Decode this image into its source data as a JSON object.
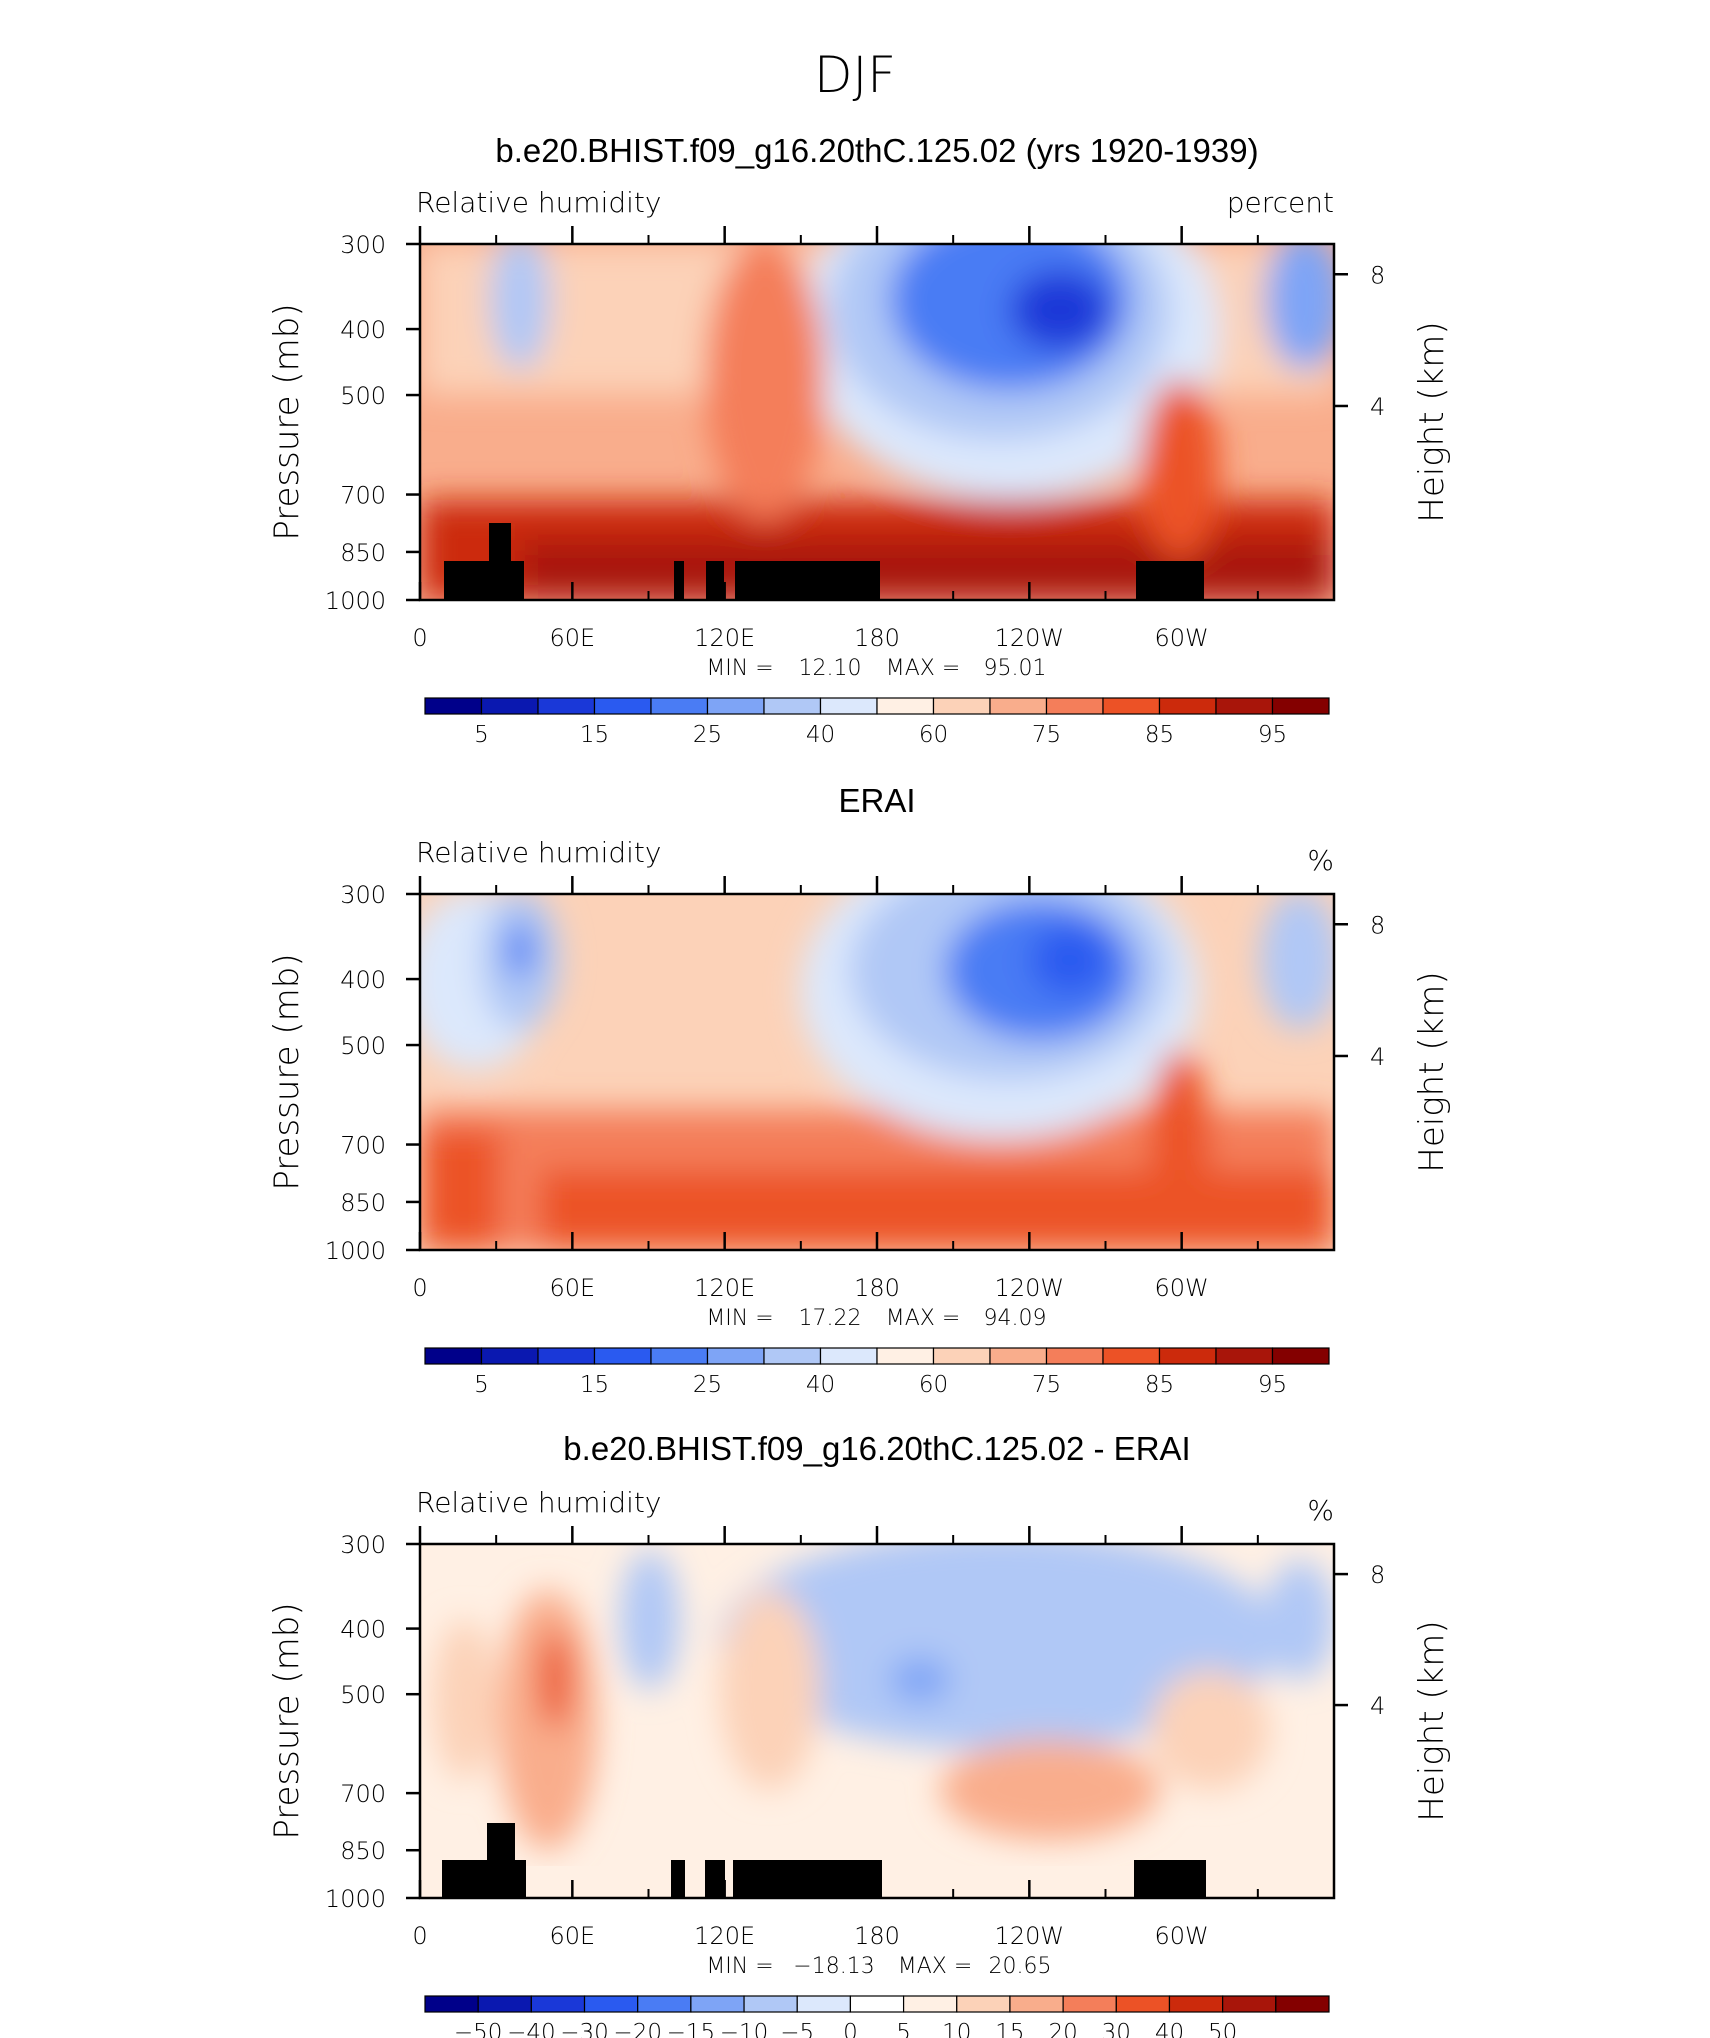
{
  "figure": {
    "title": "DJF"
  },
  "axes": {
    "x_ticks": [
      "0",
      "60E",
      "120E",
      "180",
      "120W",
      "60W"
    ],
    "y_label": "Pressure (mb)",
    "y_ticks": [
      "300",
      "400",
      "500",
      "700",
      "850",
      "1000"
    ],
    "y2_label": "Height (km)",
    "y2_ticks": [
      "8",
      "4"
    ],
    "min_label": "MIN =",
    "max_label": "MAX ="
  },
  "colors": {
    "rh_levels": [
      "#00008a",
      "#0a18b0",
      "#1a38d8",
      "#2a5af0",
      "#4a7cf4",
      "#7ea4f6",
      "#b0c8f6",
      "#dce8fc",
      "#fff0e4",
      "#fcd2b8",
      "#f9ad8c",
      "#f47e5a",
      "#ec5226",
      "#cc2a0c",
      "#a8150a",
      "#840000"
    ],
    "diff_levels": [
      "#00008a",
      "#0a18b0",
      "#1a38d8",
      "#2a5af0",
      "#4a7cf4",
      "#7ea4f6",
      "#b0c8f6",
      "#dce8fc",
      "#ffffff",
      "#fff0e4",
      "#fcd2b8",
      "#f9ad8c",
      "#f47e5a",
      "#ec5226",
      "#cc2a0c",
      "#a8150a",
      "#840000"
    ],
    "topography": "#000000"
  },
  "chart_data": [
    {
      "type": "heatmap",
      "title": "b.e20.BHIST.f09_g16.20thC.125.02 (yrs 1920-1939)",
      "left_label": "Relative humidity",
      "units": "percent",
      "min": "12.10",
      "max": "95.01",
      "xlim": [
        0,
        360
      ],
      "ylim": [
        1000,
        300
      ],
      "colorbar_labels": [
        "5",
        "15",
        "25",
        "40",
        "60",
        "75",
        "85",
        "95"
      ]
    },
    {
      "type": "heatmap",
      "title": "ERAI",
      "left_label": "Relative humidity",
      "units": "%",
      "min": "17.22",
      "max": "94.09",
      "xlim": [
        0,
        360
      ],
      "ylim": [
        1000,
        300
      ],
      "colorbar_labels": [
        "5",
        "15",
        "25",
        "40",
        "60",
        "75",
        "85",
        "95"
      ]
    },
    {
      "type": "heatmap",
      "title": "b.e20.BHIST.f09_g16.20thC.125.02 - ERAI",
      "left_label": "Relative humidity",
      "units": "%",
      "min": "−18.13",
      "max": "20.65",
      "xlim": [
        0,
        360
      ],
      "ylim": [
        1000,
        300
      ],
      "colorbar_labels": [
        "−50",
        "−40",
        "−30",
        "−20",
        "−15",
        "−10",
        "−5",
        "0",
        "5",
        "10",
        "15",
        "20",
        "30",
        "40",
        "50"
      ]
    }
  ]
}
